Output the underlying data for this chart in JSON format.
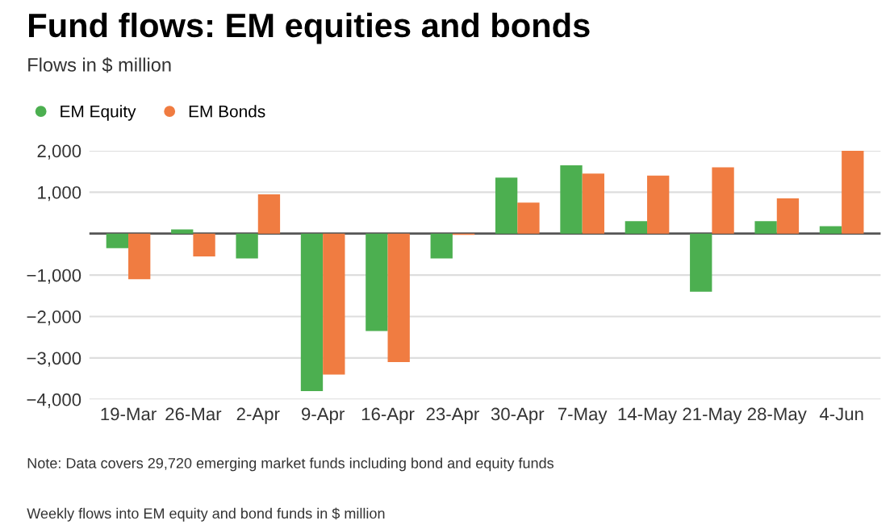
{
  "chart_data": {
    "type": "bar",
    "title": "Fund flows: EM equities and bonds",
    "subtitle": "Flows in $ million",
    "categories": [
      "19-Mar",
      "26-Mar",
      "2-Apr",
      "9-Apr",
      "16-Apr",
      "23-Apr",
      "30-Apr",
      "7-May",
      "14-May",
      "21-May",
      "28-May",
      "4-Jun"
    ],
    "series": [
      {
        "name": "EM Equity",
        "color": "#4caf50",
        "values": [
          -350,
          100,
          -600,
          -3800,
          -2350,
          -600,
          1350,
          1650,
          300,
          -1400,
          300,
          180
        ]
      },
      {
        "name": "EM Bonds",
        "color": "#f07c41",
        "values": [
          -1100,
          -550,
          950,
          -3400,
          -3100,
          -30,
          750,
          1450,
          1400,
          1600,
          850,
          2000
        ]
      }
    ],
    "ylim": [
      -4000,
      2000
    ],
    "yticks": [
      {
        "value": -4000,
        "label": "−4,000"
      },
      {
        "value": -3000,
        "label": "−3,000"
      },
      {
        "value": -2000,
        "label": "−2,000"
      },
      {
        "value": -1000,
        "label": "−1,000"
      },
      {
        "value": 0,
        "label": null
      },
      {
        "value": 1000,
        "label": "1,000"
      },
      {
        "value": 2000,
        "label": "2,000"
      }
    ],
    "grid": "y",
    "legend": "top left",
    "ref_lines": [
      {
        "axis": "y",
        "value": 0,
        "color": "#555555"
      }
    ],
    "annotations": [
      "Note: Data covers 29,720 emerging market funds including bond and equity funds",
      "Weekly flows into EM equity and bond funds in $ million"
    ]
  }
}
